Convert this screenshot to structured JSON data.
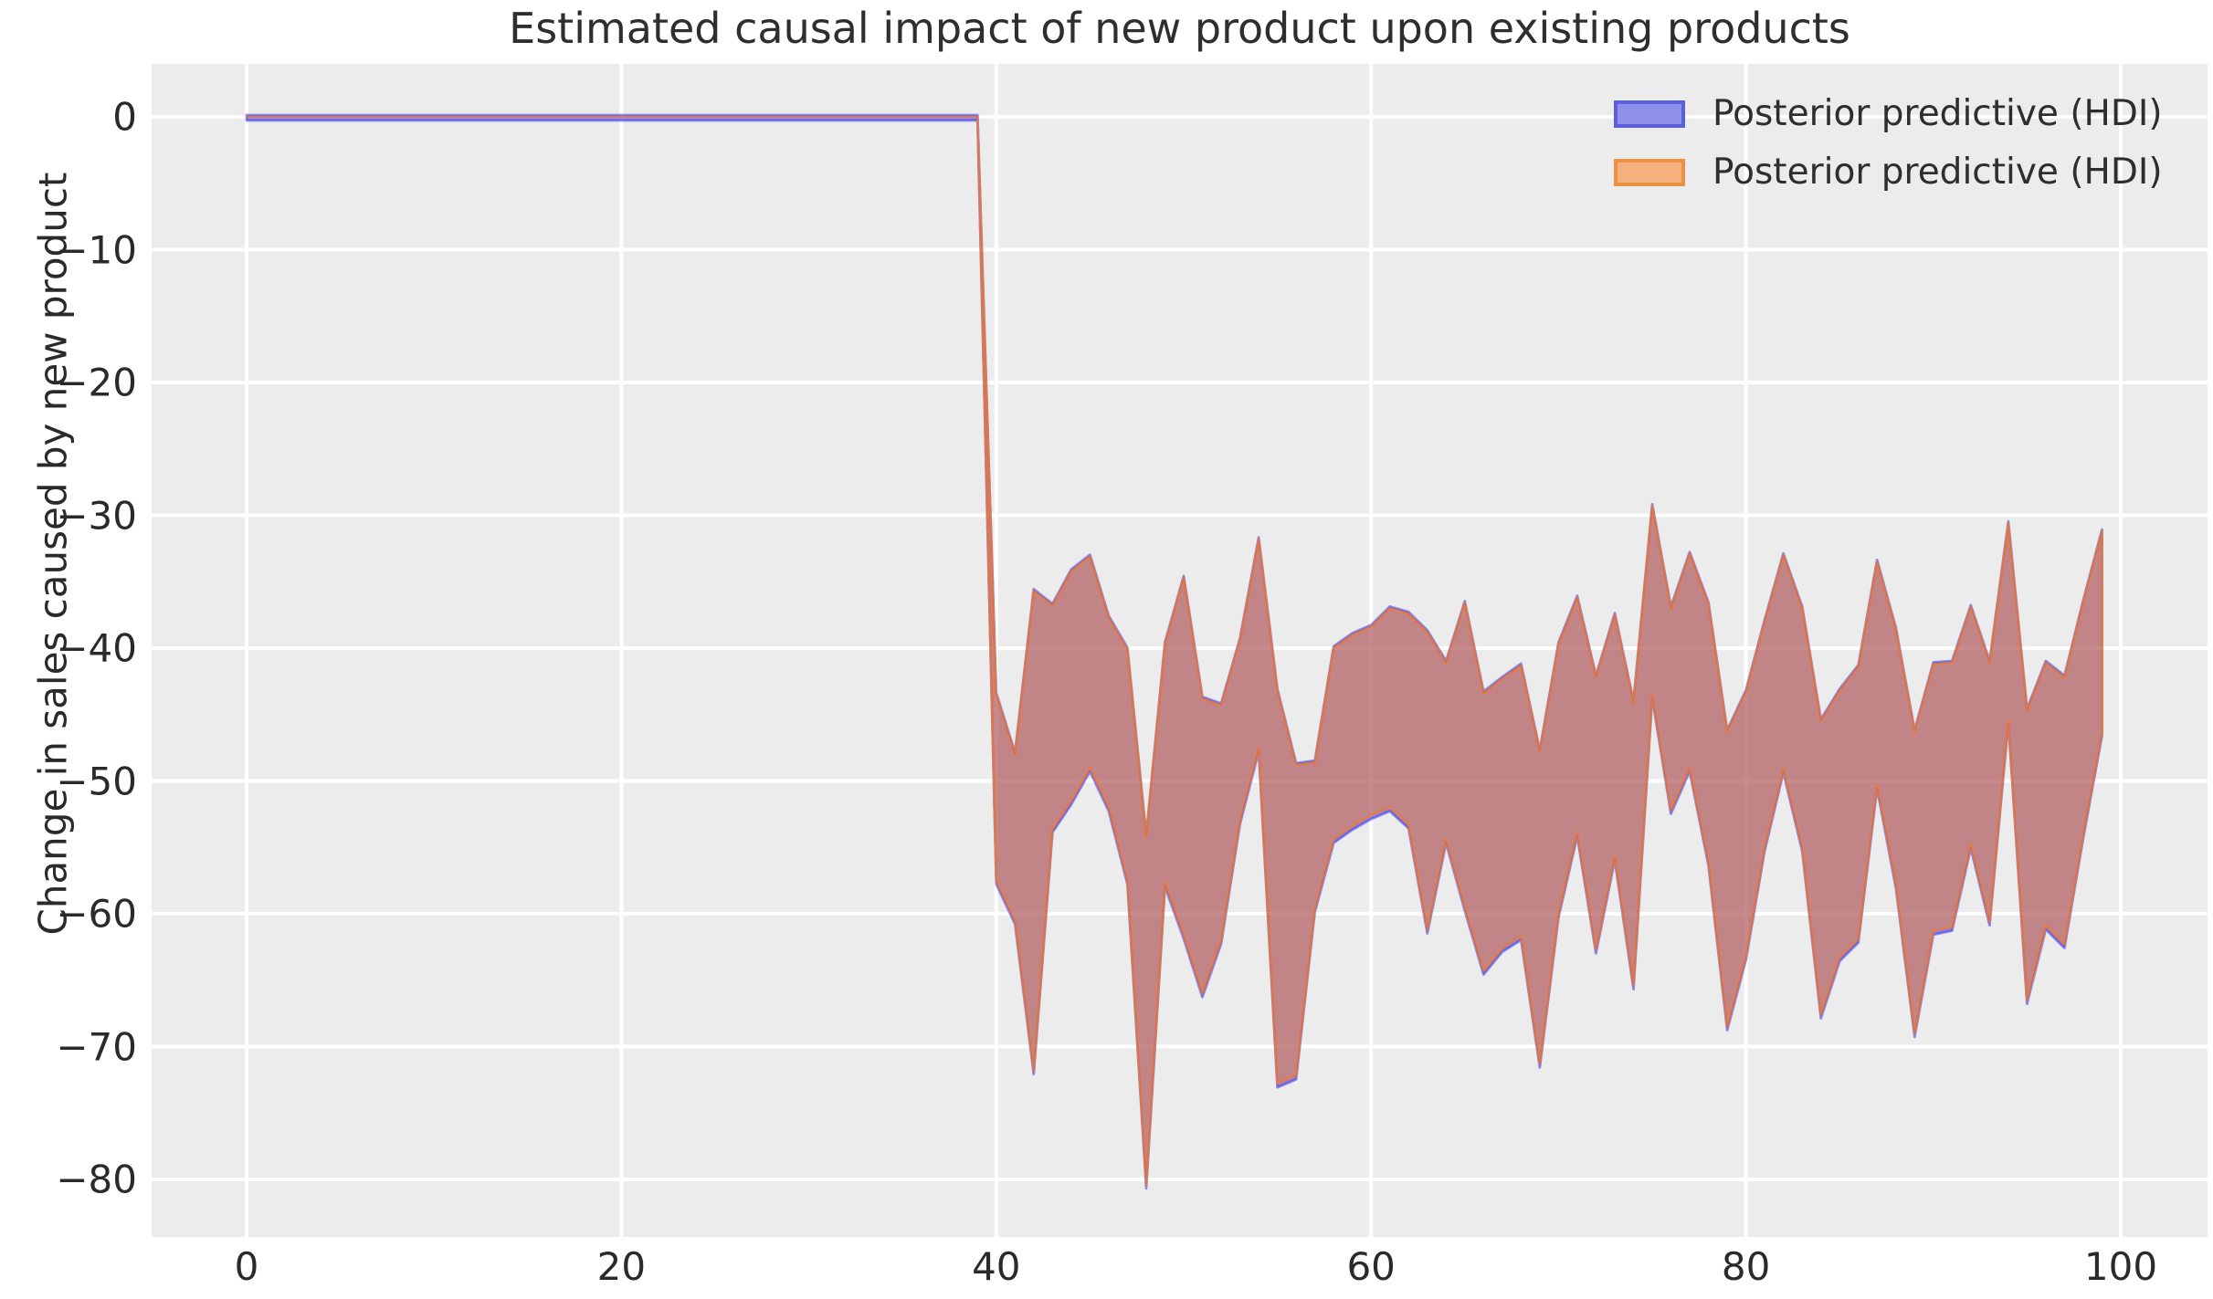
{
  "figure": {
    "title": "Estimated causal impact of new product upon existing products",
    "background": "#ffffff"
  },
  "axes": {
    "ylabel": "Change in sales caused by new product",
    "plot_background": "#ececec",
    "grid_color": "#ffffff",
    "text_color": "#2a2a2a"
  },
  "legend": {
    "entries": [
      {
        "label": "Posterior predictive (HDI)",
        "swatch_fill": "#8e90e9",
        "swatch_border": "#5a60da"
      },
      {
        "label": "Posterior predictive (HDI)",
        "swatch_fill": "#f5b17d",
        "swatch_border": "#ec9141"
      }
    ]
  },
  "chart_data": {
    "type": "area",
    "title": "Estimated causal impact of new product upon existing products",
    "xlabel": "",
    "ylabel": "Change in sales caused by new product",
    "xlim": [
      -5,
      104.6
    ],
    "ylim": [
      4,
      -84.3
    ],
    "grid": true,
    "legend_position": "upper right",
    "x_ticks": {
      "values": [
        0,
        20,
        40,
        60,
        80,
        100
      ],
      "labels": [
        "0",
        "20",
        "40",
        "60",
        "80",
        "100"
      ]
    },
    "y_ticks": {
      "values": [
        0,
        -10,
        -20,
        -30,
        -40,
        -50,
        -60,
        -70,
        -80
      ],
      "labels": [
        "0",
        "−10",
        "−20",
        "−30",
        "−40",
        "−50",
        "−60",
        "−70",
        "−80"
      ]
    },
    "description": "Two nearly identical overlapping HDI bands (blue under, orange over). Zero causal impact for x=0..39 (band collapsed to a flat line at 0), intervention at x=40 causes band between hdi_upper and hdi_lower.",
    "x": [
      0,
      1,
      2,
      3,
      4,
      5,
      6,
      7,
      8,
      9,
      10,
      11,
      12,
      13,
      14,
      15,
      16,
      17,
      18,
      19,
      20,
      21,
      22,
      23,
      24,
      25,
      26,
      27,
      28,
      29,
      30,
      31,
      32,
      33,
      34,
      35,
      36,
      37,
      38,
      39,
      40,
      41,
      42,
      43,
      44,
      45,
      46,
      47,
      48,
      49,
      50,
      51,
      52,
      53,
      54,
      55,
      56,
      57,
      58,
      59,
      60,
      61,
      62,
      63,
      64,
      65,
      66,
      67,
      68,
      69,
      70,
      71,
      72,
      73,
      74,
      75,
      76,
      77,
      78,
      79,
      80,
      81,
      82,
      83,
      84,
      85,
      86,
      87,
      88,
      89,
      90,
      91,
      92,
      93,
      94,
      95,
      96,
      97,
      98,
      99
    ],
    "hdi_upper": [
      0,
      0,
      0,
      0,
      0,
      0,
      0,
      0,
      0,
      0,
      0,
      0,
      0,
      0,
      0,
      0,
      0,
      0,
      0,
      0,
      0,
      0,
      0,
      0,
      0,
      0,
      0,
      0,
      0,
      0,
      0,
      0,
      0,
      0,
      0,
      0,
      0,
      0,
      0,
      0,
      -43.5,
      -48,
      -35.7,
      -36.8,
      -34.2,
      -33.1,
      -37.7,
      -40.1,
      -54.2,
      -39.7,
      -34.7,
      -43.8,
      -44.3,
      -39.4,
      -31.8,
      -43.2,
      -48.8,
      -48.6,
      -40,
      -39,
      -38.4,
      -37,
      -37.4,
      -38.8,
      -41.1,
      -36.6,
      -43.4,
      -42.3,
      -41.3,
      -47.8,
      -39.7,
      -36.2,
      -42.2,
      -37.5,
      -44.1,
      -29.3,
      -37,
      -32.9,
      -36.7,
      -46.3,
      -43.3,
      -38,
      -33,
      -37,
      -45.5,
      -43.2,
      -41.4,
      -33.5,
      -38.6,
      -46.3,
      -41.2,
      -41.1,
      -36.9,
      -41.1,
      -30.6,
      -44.7,
      -41.1,
      -42.2,
      -36.5,
      -31.2
    ],
    "hdi_lower": [
      0,
      0,
      0,
      0,
      0,
      0,
      0,
      0,
      0,
      0,
      0,
      0,
      0,
      0,
      0,
      0,
      0,
      0,
      0,
      0,
      0,
      0,
      0,
      0,
      0,
      0,
      0,
      0,
      0,
      0,
      0,
      0,
      0,
      0,
      0,
      0,
      0,
      0,
      0,
      0,
      -57.5,
      -60.5,
      -71.8,
      -53.6,
      -51.5,
      -49,
      -52,
      -57.5,
      -80.4,
      -57.7,
      -61.6,
      -66,
      -62,
      -53,
      -47.5,
      -72.8,
      -72.2,
      -59.6,
      -54.4,
      -53.4,
      -52.6,
      -52,
      -53.3,
      -61.2,
      -54.4,
      -59.5,
      -64.3,
      -62.6,
      -61.7,
      -71.3,
      -60,
      -53.9,
      -62.7,
      -55.7,
      -65.4,
      -43.5,
      -52.2,
      -49,
      -56.1,
      -68.5,
      -63.2,
      -55,
      -49.1,
      -55,
      -67.6,
      -63.3,
      -61.9,
      -50.3,
      -57.8,
      -69,
      -61.3,
      -61,
      -54.8,
      -60.6,
      -45.4,
      -66.5,
      -60.9,
      -62.3,
      -54,
      -46.3
    ],
    "series": [
      {
        "name": "Posterior predictive (HDI)",
        "band_fill": "rgba(20,20,245,0.48)",
        "band_edge": "rgba(60,60,230,0.55)"
      },
      {
        "name": "Posterior predictive (HDI)",
        "band_fill": "rgba(250,135,40,0.52)",
        "band_edge": "rgba(255,118,22,0.6)"
      }
    ]
  }
}
